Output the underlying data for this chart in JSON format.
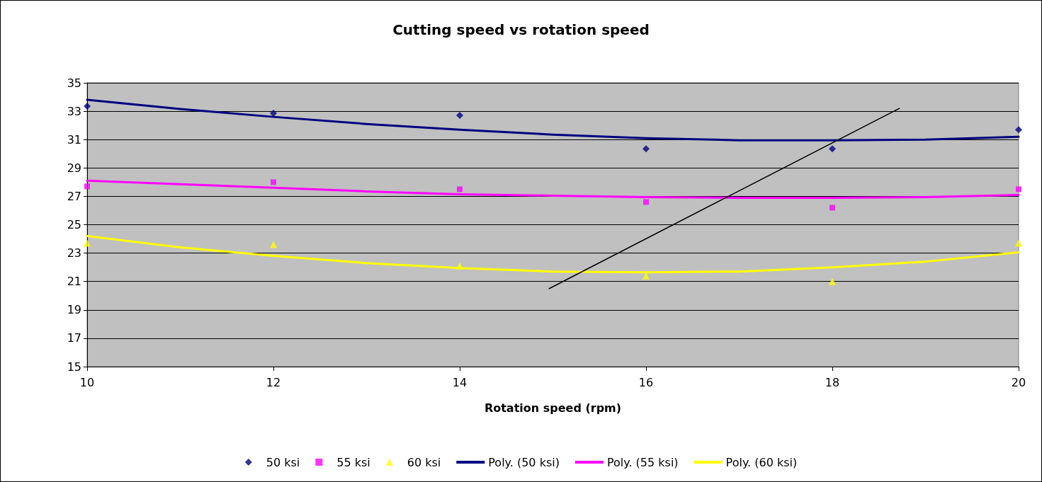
{
  "chart_data": {
    "type": "scatter",
    "title": "Cutting speed vs rotation speed",
    "xlabel": "Rotation speed (rpm)",
    "x": [
      10,
      12,
      14,
      16,
      18,
      20
    ],
    "series": [
      {
        "name": "50 ksi",
        "color": "#000080",
        "marker": "diamond",
        "values": [
          33.35,
          32.85,
          32.7,
          30.35,
          30.35,
          31.7
        ]
      },
      {
        "name": "55 ksi",
        "color": "#ff00ff",
        "marker": "square",
        "values": [
          27.7,
          28.0,
          27.5,
          26.6,
          26.2,
          27.5
        ]
      },
      {
        "name": "60 ksi",
        "color": "#ffff00",
        "marker": "triangle",
        "values": [
          23.7,
          23.6,
          22.1,
          21.4,
          21.0,
          23.7
        ]
      },
      {
        "name": "Poly. (50 ksi)",
        "type": "line",
        "color": "#000080",
        "marker": "none",
        "x": [
          10,
          11,
          12,
          13,
          14,
          15,
          16,
          17,
          18,
          19,
          20
        ],
        "values": [
          33.8,
          33.15,
          32.6,
          32.1,
          31.7,
          31.35,
          31.1,
          30.95,
          30.95,
          31.0,
          31.2
        ]
      },
      {
        "name": "Poly. (55 ksi)",
        "type": "line",
        "color": "#ff00ff",
        "marker": "none",
        "x": [
          10,
          11,
          12,
          13,
          14,
          15,
          16,
          17,
          18,
          19,
          20
        ],
        "values": [
          28.1,
          27.85,
          27.6,
          27.35,
          27.15,
          27.05,
          26.95,
          26.9,
          26.9,
          26.95,
          27.1
        ]
      },
      {
        "name": "Poly. (60 ksi)",
        "type": "line",
        "color": "#ffff00",
        "marker": "none",
        "x": [
          10,
          11,
          12,
          13,
          14,
          15,
          16,
          17,
          18,
          19,
          20
        ],
        "values": [
          24.2,
          23.4,
          22.8,
          22.3,
          21.95,
          21.7,
          21.65,
          21.7,
          22.0,
          22.4,
          23.05
        ]
      },
      {
        "type": "line",
        "color": "#000000",
        "marker": "none",
        "x": [
          14.96,
          18.72
        ],
        "values": [
          20.5,
          33.2
        ]
      }
    ],
    "xlim": [
      10,
      20
    ],
    "xticks": [
      10,
      12,
      14,
      16,
      18,
      20
    ],
    "ylim": [
      15,
      35
    ],
    "yticks": [
      15,
      17,
      19,
      21,
      23,
      25,
      27,
      29,
      31,
      33,
      35
    ],
    "grid": "y",
    "legend": "bottom"
  }
}
